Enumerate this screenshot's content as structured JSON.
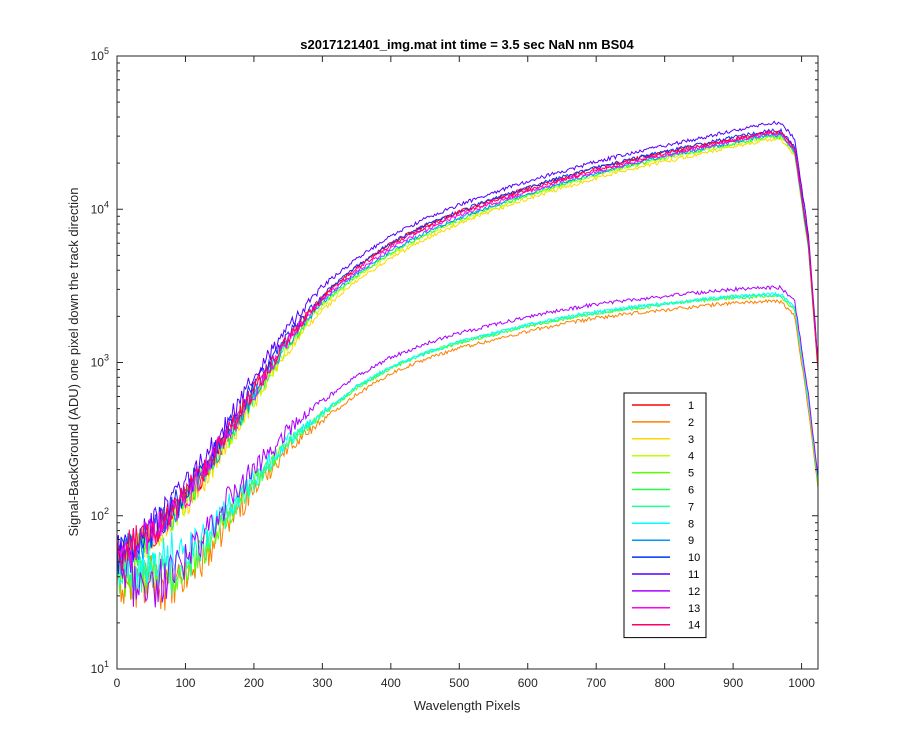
{
  "chart_data": {
    "type": "line",
    "title": "s2017121401_img.mat int time = 3.5 sec  NaN nm BS04",
    "xlabel": "Wavelength Pixels",
    "ylabel": "Signal-BackGround (ADU) one pixel down the track direction",
    "xlim": [
      0,
      1024
    ],
    "ylim": [
      10,
      100000
    ],
    "yscale": "log",
    "grid": false,
    "legend_position": "lower-right",
    "x_ticks": [
      "0",
      "100",
      "200",
      "300",
      "400",
      "500",
      "600",
      "700",
      "800",
      "900",
      "1000"
    ],
    "y_ticks": [
      {
        "base": "10",
        "exp": "1"
      },
      {
        "base": "10",
        "exp": "2"
      },
      {
        "base": "10",
        "exp": "3"
      },
      {
        "base": "10",
        "exp": "4"
      },
      {
        "base": "10",
        "exp": "5"
      }
    ],
    "anchor_x": [
      0,
      20,
      50,
      80,
      100,
      130,
      160,
      200,
      250,
      300,
      350,
      400,
      450,
      500,
      550,
      600,
      650,
      700,
      750,
      800,
      850,
      900,
      950,
      970,
      990,
      1010,
      1024
    ],
    "series": [
      {
        "name": "1",
        "color": "#ff0000",
        "noise": 0.12,
        "values": [
          55,
          62,
          78,
          105,
          130,
          200,
          330,
          650,
          1450,
          2700,
          4200,
          6000,
          7800,
          9600,
          11600,
          13700,
          16000,
          18500,
          21000,
          23500,
          26000,
          28500,
          31500,
          31500,
          25000,
          6000,
          900
        ]
      },
      {
        "name": "2",
        "color": "#ff7f00",
        "noise": 0.18,
        "values": [
          40,
          35,
          38,
          32,
          40,
          55,
          90,
          150,
          280,
          420,
          620,
          850,
          1050,
          1250,
          1400,
          1600,
          1780,
          1950,
          2080,
          2200,
          2330,
          2450,
          2500,
          2500,
          2000,
          500,
          150
        ]
      },
      {
        "name": "3",
        "color": "#ffd700",
        "noise": 0.12,
        "values": [
          50,
          58,
          72,
          95,
          120,
          180,
          290,
          550,
          1200,
          2200,
          3400,
          4800,
          6400,
          8000,
          9800,
          11700,
          13700,
          16000,
          18300,
          20500,
          22800,
          25500,
          28500,
          28500,
          22500,
          5500,
          850
        ]
      },
      {
        "name": "4",
        "color": "#bfff00",
        "noise": 0.12,
        "values": [
          48,
          56,
          70,
          98,
          125,
          190,
          300,
          580,
          1280,
          2350,
          3600,
          5100,
          6700,
          8400,
          10200,
          12200,
          14300,
          16700,
          19000,
          21300,
          23700,
          26300,
          29300,
          29300,
          23000,
          5500,
          900
        ]
      },
      {
        "name": "5",
        "color": "#55ff00",
        "noise": 0.15,
        "values": [
          45,
          40,
          42,
          38,
          45,
          62,
          100,
          165,
          300,
          460,
          680,
          920,
          1140,
          1350,
          1520,
          1730,
          1920,
          2100,
          2250,
          2380,
          2520,
          2650,
          2700,
          2700,
          2200,
          550,
          160
        ]
      },
      {
        "name": "6",
        "color": "#22ff44",
        "noise": 0.12,
        "values": [
          50,
          57,
          72,
          100,
          128,
          195,
          310,
          600,
          1320,
          2420,
          3700,
          5200,
          6850,
          8600,
          10400,
          12400,
          14600,
          17000,
          19400,
          21800,
          24200,
          26800,
          29800,
          29800,
          23500,
          5600,
          900
        ]
      },
      {
        "name": "7",
        "color": "#22ff99",
        "noise": 0.15,
        "values": [
          46,
          42,
          44,
          40,
          47,
          64,
          102,
          168,
          305,
          465,
          690,
          930,
          1150,
          1360,
          1540,
          1750,
          1940,
          2120,
          2270,
          2400,
          2540,
          2680,
          2750,
          2750,
          2250,
          560,
          170
        ]
      },
      {
        "name": "8",
        "color": "#00ffff",
        "noise": 0.15,
        "values": [
          48,
          44,
          50,
          60,
          62,
          72,
          110,
          175,
          310,
          470,
          700,
          940,
          1160,
          1370,
          1550,
          1760,
          1950,
          2140,
          2290,
          2420,
          2560,
          2700,
          2780,
          2780,
          2280,
          570,
          170
        ]
      },
      {
        "name": "9",
        "color": "#0096ff",
        "noise": 0.12,
        "values": [
          52,
          60,
          74,
          102,
          130,
          200,
          320,
          620,
          1360,
          2500,
          3800,
          5350,
          7000,
          8800,
          10600,
          12600,
          14900,
          17300,
          19700,
          22200,
          24700,
          27300,
          30500,
          30500,
          24000,
          5800,
          900
        ]
      },
      {
        "name": "10",
        "color": "#0033ff",
        "noise": 0.12,
        "values": [
          55,
          63,
          80,
          110,
          140,
          215,
          350,
          700,
          1500,
          2750,
          4250,
          6050,
          7850,
          9700,
          11700,
          13800,
          16200,
          18700,
          21200,
          23800,
          26500,
          29500,
          32500,
          32500,
          25500,
          6200,
          950
        ]
      },
      {
        "name": "11",
        "color": "#5500ff",
        "noise": 0.12,
        "values": [
          58,
          66,
          85,
          120,
          155,
          240,
          400,
          800,
          1700,
          3150,
          4750,
          6700,
          8700,
          10700,
          12900,
          15200,
          17700,
          20400,
          23200,
          26000,
          29000,
          32500,
          36500,
          36500,
          28500,
          7000,
          1000
        ]
      },
      {
        "name": "12",
        "color": "#aa00ff",
        "noise": 0.18,
        "values": [
          45,
          38,
          35,
          42,
          50,
          75,
          120,
          200,
          360,
          560,
          810,
          1080,
          1320,
          1560,
          1760,
          1990,
          2200,
          2400,
          2560,
          2700,
          2860,
          3000,
          3080,
          3080,
          2500,
          620,
          180
        ]
      },
      {
        "name": "13",
        "color": "#ff00ff",
        "noise": 0.12,
        "values": [
          53,
          61,
          76,
          104,
          132,
          205,
          330,
          640,
          1400,
          2580,
          3950,
          5600,
          7300,
          9100,
          11000,
          13000,
          15300,
          17700,
          20100,
          22600,
          25200,
          28000,
          31000,
          31000,
          24500,
          6000,
          900
        ]
      },
      {
        "name": "14",
        "color": "#ff0066",
        "noise": 0.12,
        "values": [
          55,
          62,
          78,
          105,
          135,
          210,
          340,
          660,
          1430,
          2650,
          4100,
          5850,
          7600,
          9400,
          11300,
          13300,
          15600,
          18000,
          20500,
          23000,
          25700,
          28500,
          31800,
          31800,
          25000,
          6100,
          900
        ]
      }
    ]
  }
}
